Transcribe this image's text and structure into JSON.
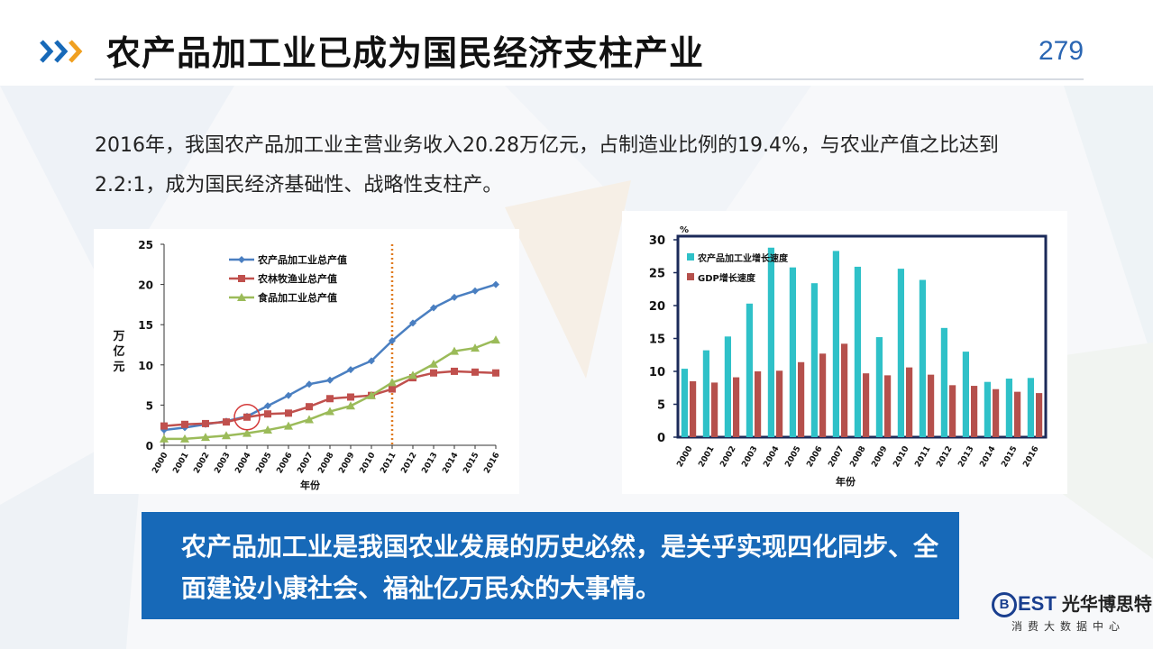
{
  "header": {
    "title": "农产品加工业已成为国民经济支柱产业",
    "page_number": "279"
  },
  "intro": {
    "text": "2016年，我国农产品加工业主营业务收入20.28万亿元，占制造业比例的19.4%，与农业产值之比达到2.2:1，成为国民经济基础性、战略性支柱产。"
  },
  "chart_data": [
    {
      "type": "line",
      "ylabel": "万亿元",
      "xlabel": "年份",
      "ylim": [
        0,
        25
      ],
      "yticks": [
        "0",
        "5",
        "10",
        "15",
        "20",
        "25"
      ],
      "x": [
        "2000",
        "2001",
        "2002",
        "2003",
        "2004",
        "2005",
        "2006",
        "2007",
        "2008",
        "2009",
        "2010",
        "2011",
        "2012",
        "2013",
        "2014",
        "2015",
        "2016"
      ],
      "legend_position": "top-left",
      "annotations": [
        "dotted vertical line at 2011",
        "circle at 2004"
      ],
      "series": [
        {
          "name": "农产品加工业总产值",
          "color": "#4a7fc1",
          "values": [
            1.9,
            2.2,
            2.6,
            3.0,
            3.6,
            4.9,
            6.2,
            7.6,
            8.1,
            9.4,
            10.5,
            13.0,
            15.2,
            17.1,
            18.4,
            19.2,
            20.0
          ]
        },
        {
          "name": "农林牧渔业总产值",
          "color": "#c0504d",
          "values": [
            2.4,
            2.6,
            2.7,
            2.9,
            3.5,
            3.9,
            4.0,
            4.8,
            5.8,
            6.0,
            6.2,
            7.0,
            8.4,
            9.0,
            9.2,
            9.1,
            9.0
          ]
        },
        {
          "name": "食品加工业总产值",
          "color": "#9bbb59",
          "values": [
            0.8,
            0.8,
            1.0,
            1.2,
            1.5,
            1.9,
            2.4,
            3.2,
            4.2,
            4.9,
            6.2,
            7.8,
            8.7,
            10.1,
            11.7,
            12.1,
            13.1
          ]
        }
      ]
    },
    {
      "type": "bar",
      "ylabel": "%",
      "xlabel": "年份",
      "ylim": [
        0,
        30
      ],
      "yticks": [
        "0",
        "5",
        "10",
        "15",
        "20",
        "25",
        "30"
      ],
      "categories": [
        "2000",
        "2001",
        "2002",
        "2003",
        "2004",
        "2005",
        "2006",
        "2007",
        "2008",
        "2009",
        "2010",
        "2011",
        "2012",
        "2013",
        "2014",
        "2015",
        "2016"
      ],
      "legend_position": "top-left",
      "series": [
        {
          "name": "农产品加工业增长速度",
          "color": "#2fc1c8",
          "values": [
            10.4,
            13.2,
            15.3,
            20.3,
            28.8,
            25.8,
            23.4,
            28.3,
            25.9,
            15.2,
            25.6,
            23.9,
            16.6,
            13.0,
            8.4,
            8.9,
            9.0
          ]
        },
        {
          "name": "GDP增长速度",
          "color": "#b5504c",
          "values": [
            8.5,
            8.3,
            9.1,
            10.0,
            10.1,
            11.4,
            12.7,
            14.2,
            9.7,
            9.4,
            10.6,
            9.5,
            7.9,
            7.8,
            7.3,
            6.9,
            6.7
          ]
        }
      ]
    }
  ],
  "banner": {
    "text": "农产品加工业是我国农业发展的历史必然，是关乎实现四化同步、全面建设小康社会、福祉亿万民众的大事情。"
  },
  "logo": {
    "mark": "B",
    "name_latin": "EST",
    "name_cn": "光华博思特",
    "subtitle": "消费大数据中心"
  }
}
